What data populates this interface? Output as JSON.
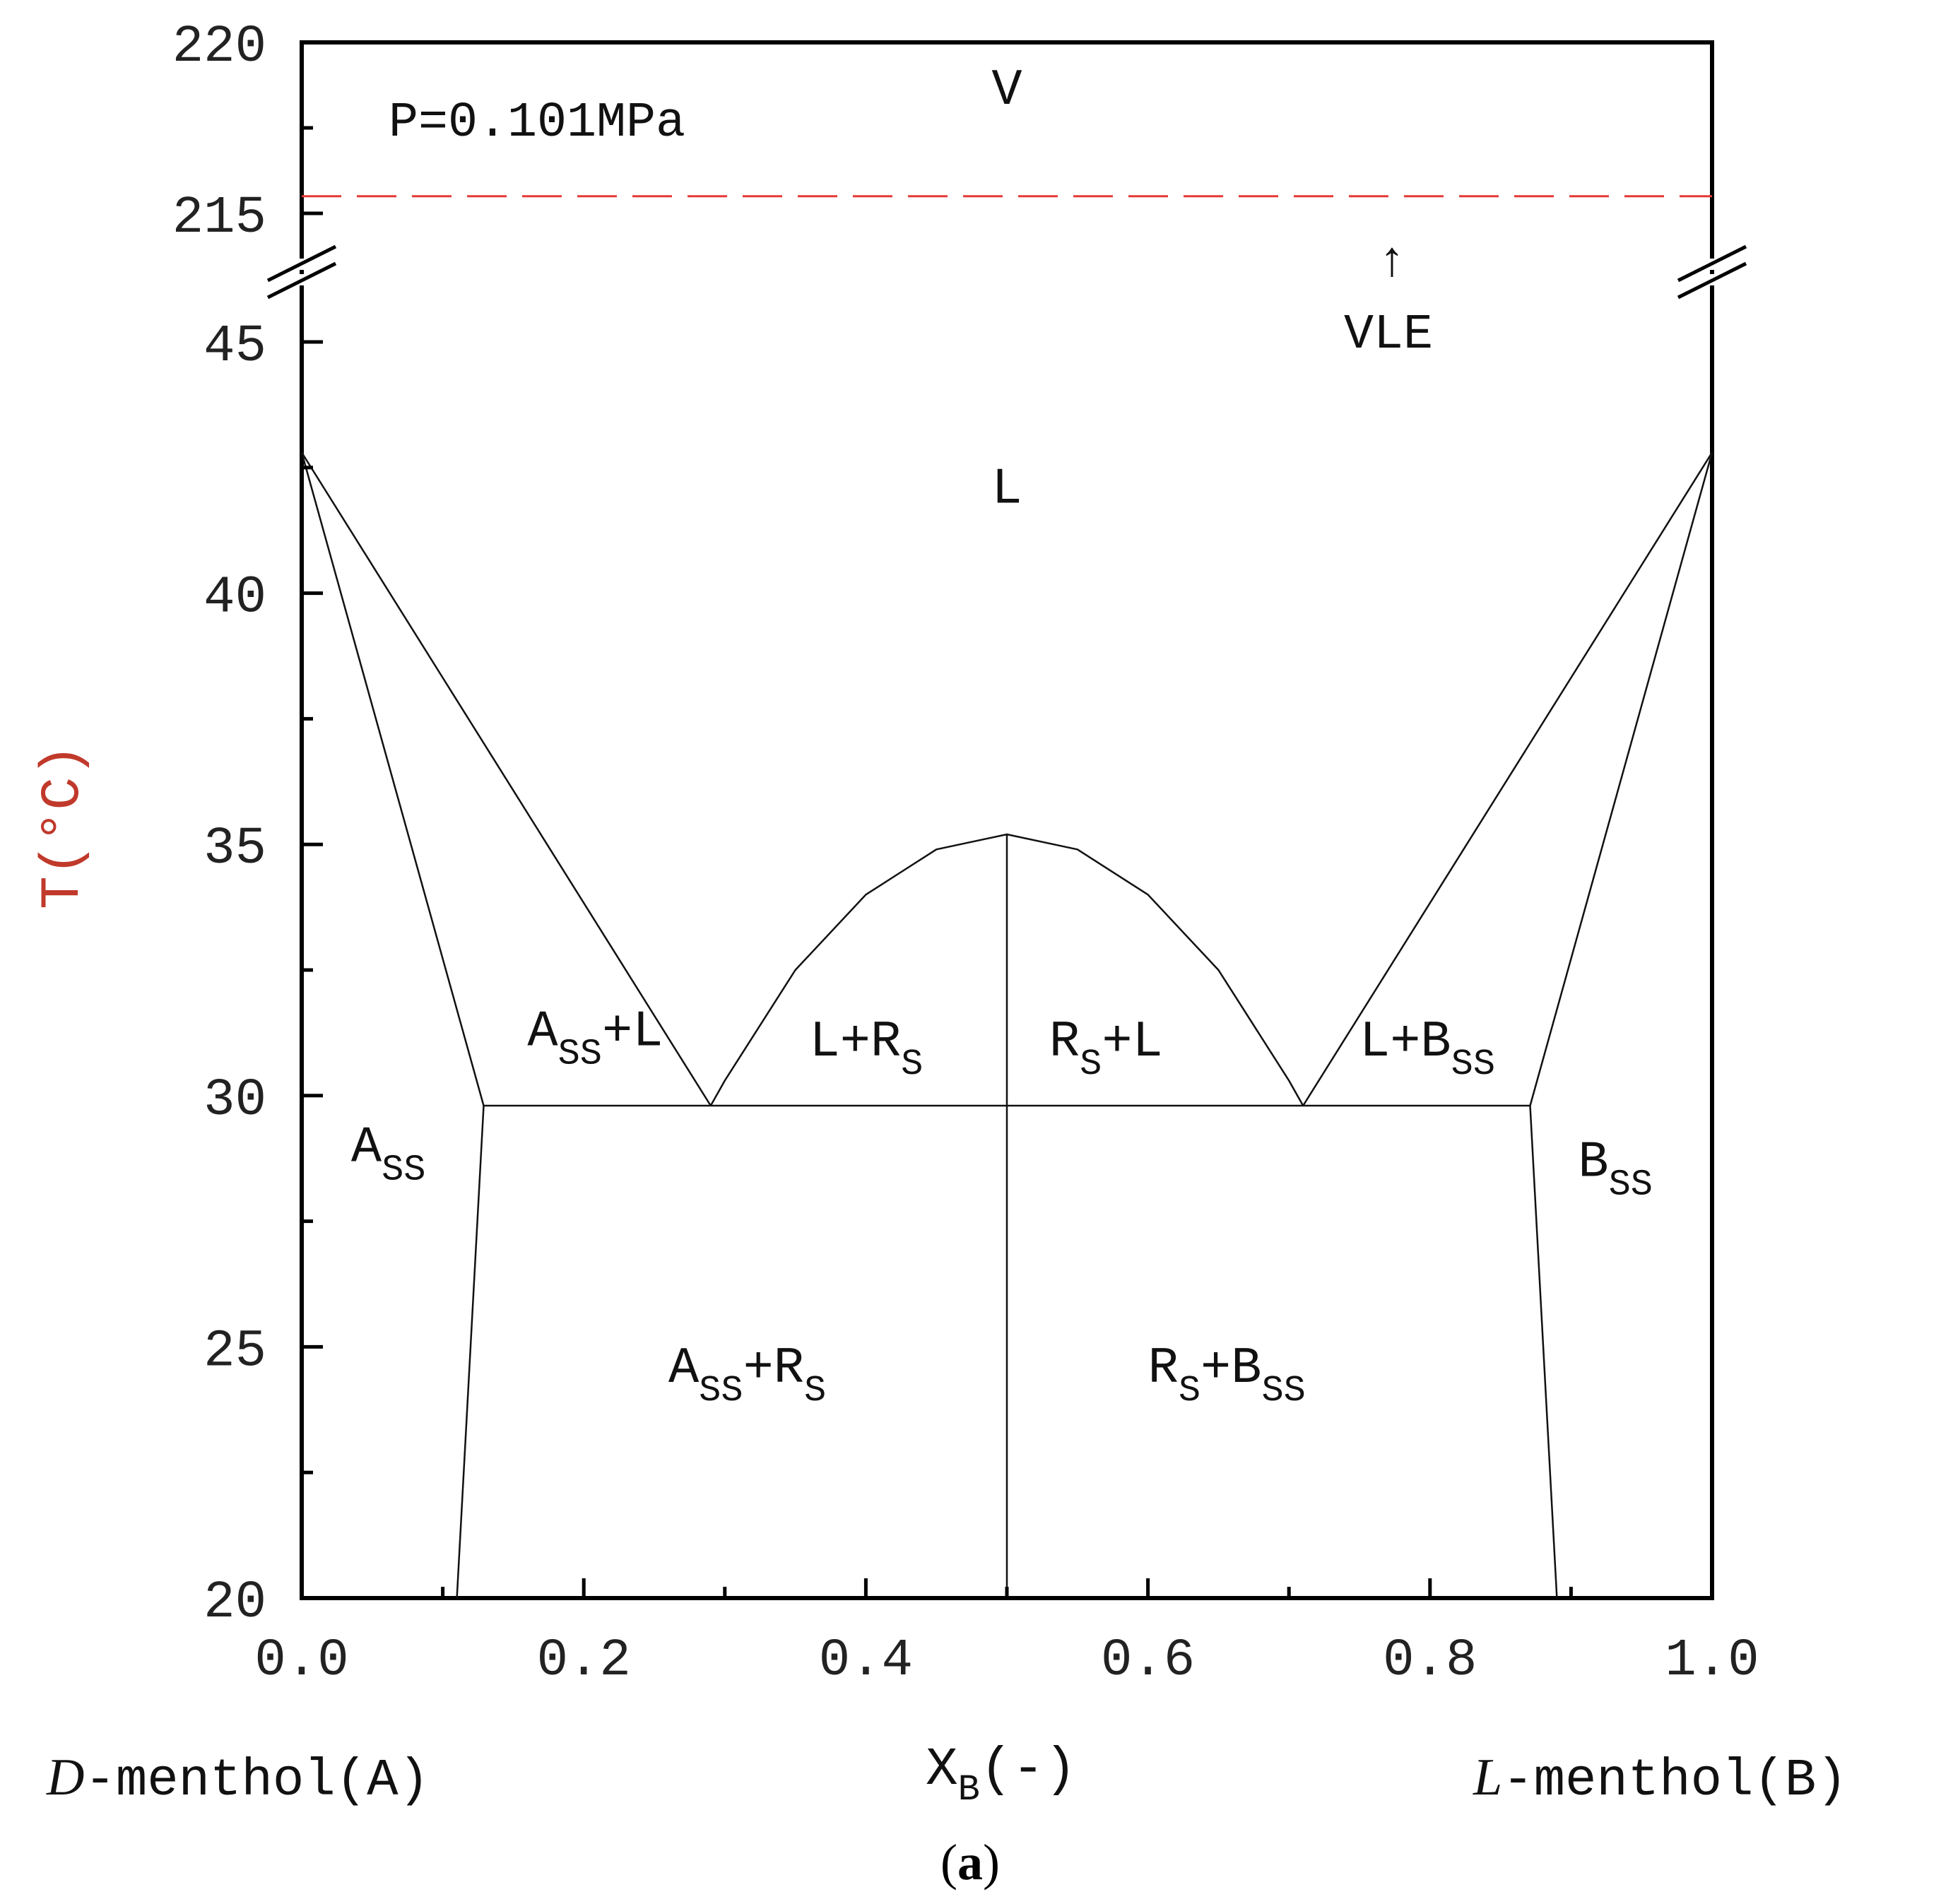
{
  "chart_data": {
    "type": "line",
    "pressure_label": "P=0.101MPa",
    "xlabel": "X",
    "xlabel_sub": "B",
    "xlabel_suffix": "(-)",
    "ylabel": "T(°C)",
    "xlim": [
      0.0,
      1.0
    ],
    "x_ticks": [
      "0.0",
      "0.2",
      "0.4",
      "0.6",
      "0.8",
      "1.0"
    ],
    "x_tick_values": [
      0.0,
      0.2,
      0.4,
      0.6,
      0.8,
      1.0
    ],
    "y_lower_range": [
      20,
      45
    ],
    "y_upper_range": [
      215,
      220
    ],
    "y_ticks_lower": [
      "20",
      "25",
      "30",
      "35",
      "40",
      "45"
    ],
    "y_tick_values_lower": [
      20,
      25,
      30,
      35,
      40,
      45
    ],
    "y_ticks_upper": [
      "215",
      "220"
    ],
    "y_tick_values_upper": [
      215,
      220
    ],
    "axis_break": true,
    "left_component": {
      "italic": "D",
      "rest": "-menthol(A)"
    },
    "right_component": {
      "italic": "L",
      "rest": "-menthol(B)"
    },
    "caption_letter": "a",
    "vle": {
      "label": "VLE",
      "arrow": "↑",
      "temperature": 215.5,
      "color": "#e53935",
      "dashed": true
    },
    "eutectic_temperature": 29.8,
    "series": [
      {
        "x": [
          0.0,
          0.29
        ],
        "y": [
          42.8,
          29.8
        ]
      },
      {
        "x": [
          0.0,
          0.129
        ],
        "y": [
          42.8,
          29.8
        ]
      },
      {
        "x": [
          0.129,
          0.11
        ],
        "y": [
          29.8,
          20.0
        ]
      },
      {
        "x": [
          0.129,
          0.871
        ],
        "y": [
          29.8,
          29.8
        ]
      },
      {
        "x": [
          0.29,
          0.3,
          0.35,
          0.4,
          0.45,
          0.5,
          0.55,
          0.6,
          0.65,
          0.7,
          0.71
        ],
        "y": [
          29.8,
          30.3,
          32.5,
          34.0,
          34.9,
          35.2,
          34.9,
          34.0,
          32.5,
          30.3,
          29.8
        ]
      },
      {
        "x": [
          0.5,
          0.5
        ],
        "y": [
          35.2,
          20.0
        ]
      },
      {
        "x": [
          1.0,
          0.71
        ],
        "y": [
          42.8,
          29.8
        ]
      },
      {
        "x": [
          1.0,
          0.871
        ],
        "y": [
          42.8,
          29.8
        ]
      },
      {
        "x": [
          0.871,
          0.89
        ],
        "y": [
          29.8,
          20.0
        ]
      }
    ],
    "regions": [
      {
        "main": "V",
        "sub": "",
        "after": "",
        "x": 0.5,
        "T": 218.2
      },
      {
        "main": "L",
        "sub": "",
        "after": "",
        "x": 0.5,
        "T": 41.8
      },
      {
        "main": "A",
        "sub": "SS",
        "after": "+L",
        "x": 0.16,
        "T": 31.0
      },
      {
        "main": "L+R",
        "sub": "S",
        "after": "",
        "x": 0.36,
        "T": 30.8
      },
      {
        "main": "R",
        "sub": "S",
        "after": "+L",
        "x": 0.53,
        "T": 30.8
      },
      {
        "main": "L+B",
        "sub": "SS",
        "after": "",
        "x": 0.75,
        "T": 30.8
      },
      {
        "main": "A",
        "sub": "SS",
        "after": "",
        "x": 0.035,
        "T": 28.7
      },
      {
        "main": "B",
        "sub": "SS",
        "after": "",
        "x": 0.905,
        "T": 28.4
      },
      {
        "main": "A",
        "sub": "SS",
        "after": "+R",
        "x": 0.26,
        "T": 24.3
      },
      {
        "main": "R",
        "sub": "S",
        "after": "+B",
        "x": 0.6,
        "T": 24.3
      }
    ],
    "region_after_sub": {
      "A_SS+R_S": "S",
      "R_S+B_SS": "SS"
    }
  }
}
